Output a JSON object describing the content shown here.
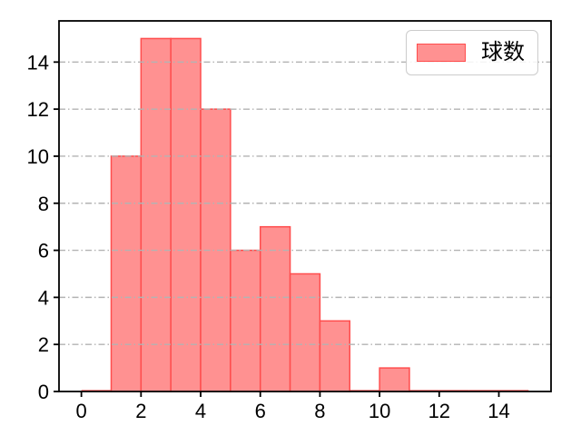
{
  "chart_data": {
    "type": "bar",
    "subtype": "histogram",
    "title": "",
    "xlabel": "",
    "ylabel": "",
    "legend": {
      "label": "球数",
      "position": "upper right"
    },
    "bin_edges": [
      0,
      1,
      2,
      3,
      4,
      5,
      6,
      7,
      8,
      9,
      10,
      11,
      12,
      13,
      14,
      15
    ],
    "counts": [
      0,
      10,
      15,
      15,
      12,
      6,
      7,
      5,
      3,
      0,
      1,
      0,
      0,
      0,
      0
    ],
    "x_ticks": [
      0,
      2,
      4,
      6,
      8,
      10,
      12,
      14
    ],
    "y_ticks": [
      0,
      2,
      4,
      6,
      8,
      10,
      12,
      14
    ],
    "xlim": [
      -0.75,
      15.75
    ],
    "ylim": [
      0,
      15.75
    ],
    "grid": {
      "axis": "y",
      "style": "dashdot",
      "on": true
    },
    "colors": {
      "bar_fill": "#ff9191",
      "bar_edge": "#ff4d4d",
      "grid": "#b3b3b3",
      "spine": "#000000",
      "tick_label": "#000000",
      "legend_border": "#cccccc",
      "legend_bg": "rgba(255,255,255,0.85)",
      "background": "#ffffff"
    }
  }
}
